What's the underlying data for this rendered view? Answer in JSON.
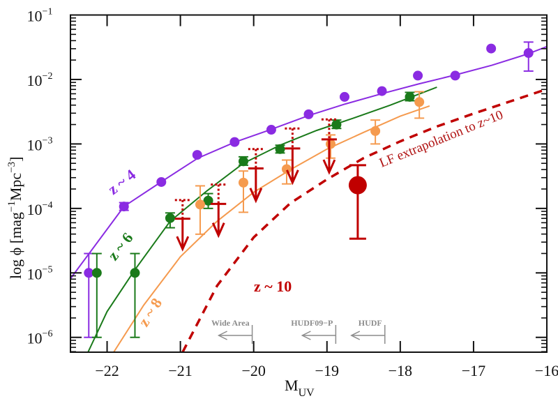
{
  "chart_data": {
    "type": "scatter",
    "title": "",
    "xlabel": "M",
    "xlabel_sub": "UV",
    "ylabel": "log ϕ [mag⁻¹Mpc⁻³]",
    "ylabel_parts": {
      "prefix": "log ϕ [mag",
      "exp1": "−1",
      "mid": "Mpc",
      "exp2": "−3",
      "suffix": "]"
    },
    "xlim": [
      -22.5,
      -16
    ],
    "ylim_log10": [
      -6.23,
      -1
    ],
    "yscale": "log",
    "grid": false,
    "x_ticks": [
      -22,
      -21,
      -20,
      -19,
      -18,
      -17,
      -16
    ],
    "x_tick_labels": [
      "−22",
      "−21",
      "−20",
      "−19",
      "−18",
      "−17",
      "−16"
    ],
    "y_ticks_log10": [
      -1,
      -2,
      -3,
      -4,
      -5,
      -6
    ],
    "y_tick_labels": [
      {
        "base": "10",
        "exp": "−1"
      },
      {
        "base": "10",
        "exp": "−2"
      },
      {
        "base": "10",
        "exp": "−3"
      },
      {
        "base": "10",
        "exp": "−4"
      },
      {
        "base": "10",
        "exp": "−5"
      },
      {
        "base": "10",
        "exp": "−6"
      }
    ],
    "series": [
      {
        "name": "z ~ 4",
        "color": "#8a2be2",
        "kind": "points+curve",
        "points": [
          {
            "M": -22.25,
            "log_phi": -5.0,
            "err_lo": -6.0,
            "err_hi": -4.7
          },
          {
            "M": -21.77,
            "log_phi": -3.97,
            "err_lo": -4.03,
            "err_hi": -3.91
          },
          {
            "M": -21.26,
            "log_phi": -3.59
          },
          {
            "M": -20.77,
            "log_phi": -3.17
          },
          {
            "M": -20.26,
            "log_phi": -2.97
          },
          {
            "M": -19.76,
            "log_phi": -2.78
          },
          {
            "M": -19.25,
            "log_phi": -2.54
          },
          {
            "M": -18.76,
            "log_phi": -2.27
          },
          {
            "M": -18.25,
            "log_phi": -2.18
          },
          {
            "M": -17.76,
            "log_phi": -1.94
          },
          {
            "M": -17.25,
            "log_phi": -1.94
          },
          {
            "M": -16.76,
            "log_phi": -1.52
          },
          {
            "M": -16.25,
            "log_phi": -1.59,
            "err_lo": -1.87,
            "err_hi": -1.42
          }
        ],
        "curve": [
          [
            -22.5,
            -5.09
          ],
          [
            -21.77,
            -3.97
          ],
          [
            -21.25,
            -3.58
          ],
          [
            -20.76,
            -3.22
          ],
          [
            -20.25,
            -2.97
          ],
          [
            -19.75,
            -2.77
          ],
          [
            -19.25,
            -2.56
          ],
          [
            -18.75,
            -2.38
          ],
          [
            -18.25,
            -2.22
          ],
          [
            -17.75,
            -2.07
          ],
          [
            -17.25,
            -1.93
          ],
          [
            -16.75,
            -1.78
          ],
          [
            -16.25,
            -1.6
          ],
          [
            -16.0,
            -1.49
          ]
        ],
        "label": "z ~ 4"
      },
      {
        "name": "z ~ 6",
        "color": "#1a7a1a",
        "kind": "points+curve",
        "points": [
          {
            "M": -22.14,
            "log_phi": -5.0,
            "err_lo": -6.0,
            "err_hi": -4.7
          },
          {
            "M": -21.62,
            "log_phi": -5.0,
            "err_lo": -6.0,
            "err_hi": -4.7
          },
          {
            "M": -21.14,
            "log_phi": -4.15,
            "err_lo": -4.3,
            "err_hi": -4.07
          },
          {
            "M": -20.62,
            "log_phi": -3.88,
            "err_lo": -4.0,
            "err_hi": -3.77
          },
          {
            "M": -20.14,
            "log_phi": -3.27,
            "err_lo": -3.33,
            "err_hi": -3.2
          },
          {
            "M": -19.64,
            "log_phi": -3.08,
            "err_lo": -3.14,
            "err_hi": -3.02
          },
          {
            "M": -18.87,
            "log_phi": -2.7,
            "err_lo": -2.76,
            "err_hi": -2.63
          },
          {
            "M": -17.87,
            "log_phi": -2.27,
            "err_lo": -2.33,
            "err_hi": -2.2
          }
        ],
        "curve": [
          [
            -22.26,
            -6.23
          ],
          [
            -22.0,
            -5.6
          ],
          [
            -21.62,
            -4.95
          ],
          [
            -21.14,
            -4.2
          ],
          [
            -20.64,
            -3.73
          ],
          [
            -20.14,
            -3.3
          ],
          [
            -19.64,
            -3.02
          ],
          [
            -19.14,
            -2.79
          ],
          [
            -18.64,
            -2.6
          ],
          [
            -18.14,
            -2.4
          ],
          [
            -17.5,
            -2.12
          ]
        ],
        "label": "z ~ 6"
      },
      {
        "name": "z ~ 8",
        "color": "#f59a4e",
        "kind": "points+curve",
        "points": [
          {
            "M": -20.73,
            "log_phi": -3.94,
            "err_lo": -4.4,
            "err_hi": -3.65
          },
          {
            "M": -20.14,
            "log_phi": -3.6,
            "err_lo": -4.06,
            "err_hi": -3.42
          },
          {
            "M": -19.55,
            "log_phi": -3.39,
            "err_lo": -3.62,
            "err_hi": -3.25
          },
          {
            "M": -18.95,
            "log_phi": -3.0,
            "err_lo": -3.22,
            "err_hi": -2.86
          },
          {
            "M": -18.34,
            "log_phi": -2.8,
            "err_lo": -3.0,
            "err_hi": -2.63
          },
          {
            "M": -17.74,
            "log_phi": -2.35,
            "err_lo": -2.6,
            "err_hi": -2.19
          }
        ],
        "curve": [
          [
            -21.91,
            -6.23
          ],
          [
            -21.5,
            -5.5
          ],
          [
            -21.0,
            -4.75
          ],
          [
            -20.5,
            -4.2
          ],
          [
            -20.0,
            -3.75
          ],
          [
            -19.5,
            -3.4
          ],
          [
            -19.0,
            -3.08
          ],
          [
            -18.5,
            -2.82
          ],
          [
            -18.0,
            -2.57
          ],
          [
            -17.6,
            -2.41
          ]
        ],
        "label": "z ~ 8"
      },
      {
        "name": "z ~ 10",
        "color": "#c00000",
        "kind": "upper-limits+point",
        "upper_limits": [
          {
            "M": -20.97,
            "log_phi": -4.16,
            "dotted_top": -3.87,
            "arrow_to": -4.63
          },
          {
            "M": -20.48,
            "log_phi": -3.93,
            "dotted_top": -3.63,
            "arrow_to": -4.42
          },
          {
            "M": -19.97,
            "log_phi": -3.38,
            "dotted_top": -3.08,
            "arrow_to": -3.88
          },
          {
            "M": -19.47,
            "log_phi": -3.07,
            "dotted_top": -2.76,
            "arrow_to": -3.6
          },
          {
            "M": -18.97,
            "log_phi": -2.93,
            "dotted_top": -2.62,
            "arrow_to": -3.44
          }
        ],
        "points": [
          {
            "M": -18.58,
            "log_phi": -3.64,
            "err_lo": -4.47,
            "err_hi": -3.33
          }
        ],
        "label": "z ~ 10"
      },
      {
        "name": "LF extrapolation to z~10",
        "color": "#c00000",
        "kind": "dashed-curve",
        "curve": [
          [
            -20.97,
            -6.23
          ],
          [
            -20.5,
            -5.2
          ],
          [
            -20.0,
            -4.45
          ],
          [
            -19.5,
            -3.92
          ],
          [
            -19.0,
            -3.55
          ],
          [
            -18.5,
            -3.22
          ],
          [
            -18.0,
            -2.96
          ],
          [
            -17.5,
            -2.73
          ],
          [
            -17.0,
            -2.53
          ],
          [
            -16.5,
            -2.34
          ],
          [
            -16.0,
            -2.15
          ]
        ],
        "label": "LF extrapolation to z~10"
      }
    ],
    "annotations": [
      {
        "text": "Wide Area",
        "limit_M": -20.02,
        "color": "#8c8c8c"
      },
      {
        "text": "HUDF09−P",
        "limit_M": -18.88,
        "color": "#8c8c8c"
      },
      {
        "text": "HUDF",
        "limit_M": -18.21,
        "color": "#8c8c8c"
      }
    ],
    "legend": "none (inline labels)"
  }
}
